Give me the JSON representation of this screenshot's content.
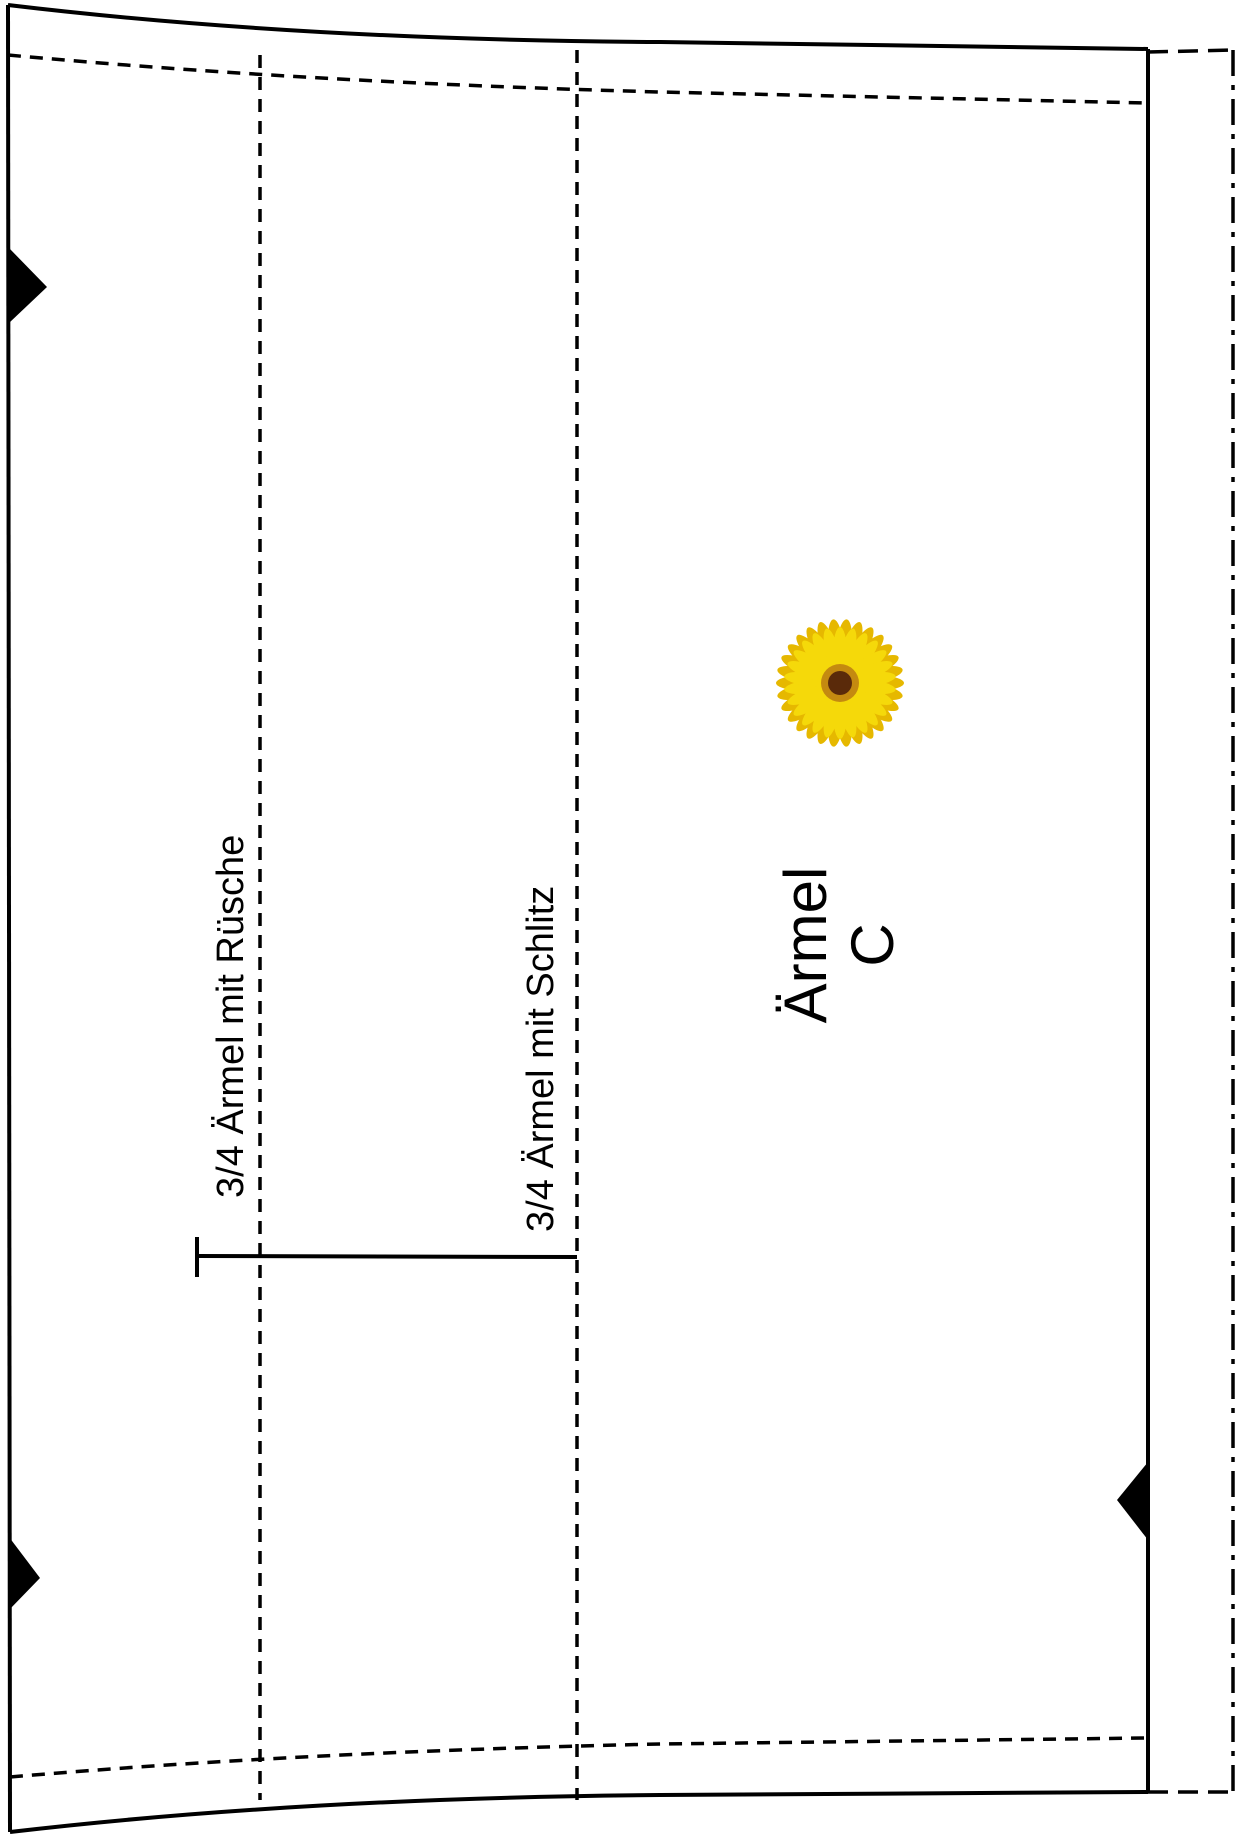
{
  "pattern": {
    "piece_name": "Ärmel",
    "piece_letter": "C",
    "lines": {
      "ruffle_label": "3/4 Ärmel mit Rüsche",
      "slit_label": "3/4 Ärmel mit Schlitz"
    },
    "icons": {
      "piece_emblem": "sunflower-icon",
      "notch": "notch-triangle-icon"
    },
    "colors": {
      "line": "#000000",
      "background": "#ffffff",
      "petal": "#f5d90a",
      "petal_shade": "#e6b800",
      "center": "#5a2a0a"
    }
  }
}
